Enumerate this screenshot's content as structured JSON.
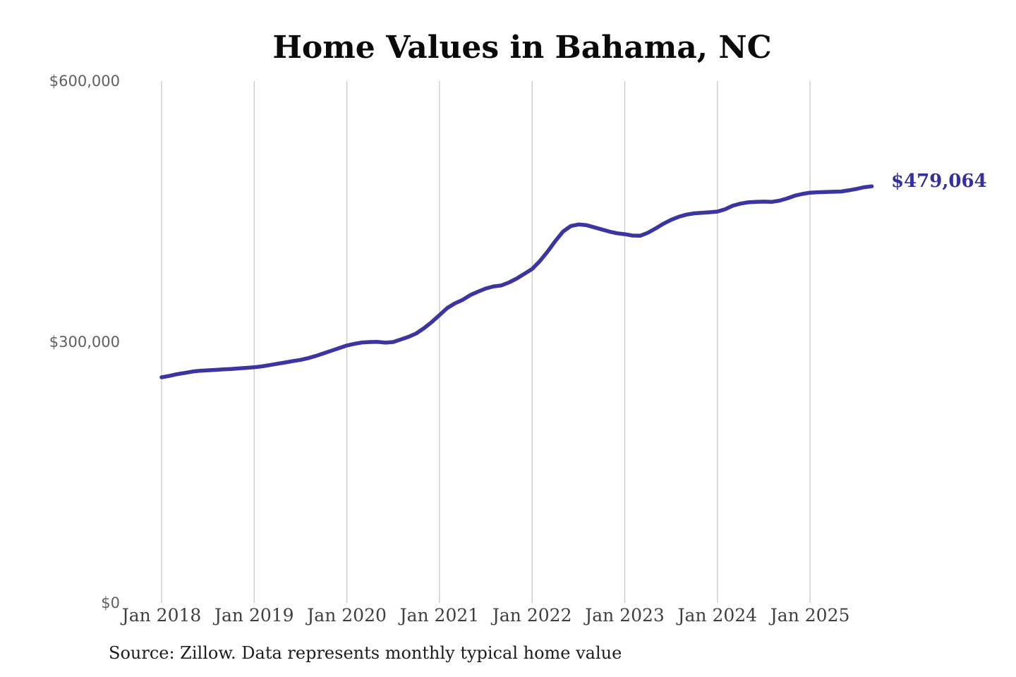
{
  "colors": {
    "background": "#ffffff",
    "gridline": "#c9c9c9",
    "line": "#3a35a0",
    "end_label": "#34319c",
    "title_text": "#0a0a0a",
    "x_tick_text": "#3f3f3f",
    "y_tick_text": "#5f5f5f",
    "source_text": "#1c1c1c"
  },
  "chart_data": {
    "type": "line",
    "title": "Home Values in Bahama, NC",
    "xlabel": "",
    "ylabel": "",
    "ylim": [
      0,
      600000
    ],
    "grid": "vertical-only",
    "legend": "none",
    "x_start": "Jan 2018",
    "x_end": "Sep 2025",
    "x_interval": "monthly",
    "x_tick_labels": [
      "Jan 2018",
      "Jan 2019",
      "Jan 2020",
      "Jan 2021",
      "Jan 2022",
      "Jan 2023",
      "Jan 2024",
      "Jan 2025"
    ],
    "y_ticks": [
      600000,
      300000,
      0
    ],
    "y_tick_labels": [
      "$600,000",
      "$300,000",
      "$0"
    ],
    "series": [
      {
        "name": "Monthly typical home value",
        "color": "#3a35a0",
        "values": [
          259500,
          261000,
          263000,
          264500,
          266000,
          267000,
          267500,
          268000,
          268500,
          269000,
          269700,
          270300,
          271000,
          272000,
          273500,
          275000,
          276500,
          278000,
          279500,
          281500,
          284000,
          287000,
          290000,
          293000,
          296000,
          298000,
          299500,
          300000,
          300200,
          299300,
          300000,
          303000,
          306000,
          310000,
          316000,
          323000,
          331000,
          339000,
          344500,
          348500,
          354000,
          358000,
          361500,
          364000,
          365000,
          368500,
          373000,
          378500,
          384000,
          393000,
          404000,
          416000,
          427000,
          433300,
          435200,
          434400,
          432000,
          429500,
          427000,
          425000,
          424000,
          422400,
          422200,
          425700,
          430600,
          436000,
          440500,
          444000,
          446500,
          448000,
          448500,
          449200,
          450000,
          452700,
          456800,
          459200,
          460600,
          461100,
          461400,
          461100,
          462500,
          465000,
          468200,
          470300,
          471700,
          472200,
          472500,
          472800,
          473000,
          474400,
          476000,
          478000,
          479064
        ]
      }
    ],
    "end_label": "$479,064",
    "source_note": "Source: Zillow. Data represents monthly typical home value"
  }
}
